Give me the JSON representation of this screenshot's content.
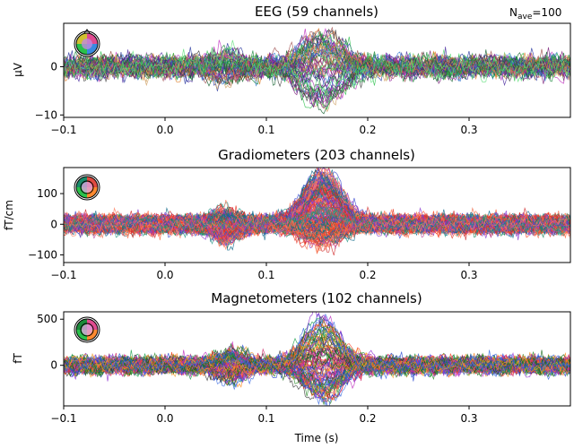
{
  "figure": {
    "nave_label": "N",
    "nave_sub": "ave",
    "nave_value": "=100"
  },
  "chart_data": [
    {
      "type": "line",
      "title": "EEG (59 channels)",
      "ylabel": "µV",
      "xlabel": "",
      "xlim": [
        -0.1,
        0.4
      ],
      "ylim": [
        -10.5,
        9.0
      ],
      "xticks": [
        -0.1,
        0.0,
        0.1,
        0.2,
        0.3
      ],
      "xtick_labels": [
        "−0.1",
        "0.0",
        "0.1",
        "0.2",
        "0.3"
      ],
      "yticks": [
        -10,
        0
      ],
      "ytick_labels": [
        "−10",
        "0"
      ],
      "n_channels": 59,
      "noise": 1.0,
      "components": [
        {
          "center": 0.155,
          "width": 0.028,
          "amp_min": -8.5,
          "amp_max": 7.5
        },
        {
          "center": 0.06,
          "width": 0.02,
          "amp_min": -3,
          "amp_max": 3
        }
      ],
      "palette": [
        "#1a8a3a",
        "#2fbf4f",
        "#5fe07a",
        "#0f5f2a",
        "#7a1f7a",
        "#9a2aa0",
        "#c030c0",
        "#4a2aa0",
        "#2a3aa0",
        "#3a7ad0",
        "#e08030",
        "#d0a060",
        "#a05050",
        "#404040"
      ]
    },
    {
      "type": "line",
      "title": "Gradiometers (203 channels)",
      "ylabel": "fT/cm",
      "xlabel": "",
      "xlim": [
        -0.1,
        0.4
      ],
      "ylim": [
        -125,
        185
      ],
      "xticks": [
        -0.1,
        0.0,
        0.1,
        0.2,
        0.3
      ],
      "xtick_labels": [
        "−0.1",
        "0.0",
        "0.1",
        "0.2",
        "0.3"
      ],
      "yticks": [
        -100,
        0,
        100
      ],
      "ytick_labels": [
        "−100",
        "0",
        "100"
      ],
      "n_channels": 203,
      "noise": 12,
      "components": [
        {
          "center": 0.155,
          "width": 0.025,
          "amp_min": -70,
          "amp_max": 165
        },
        {
          "center": 0.06,
          "width": 0.015,
          "amp_min": -55,
          "amp_max": 45
        }
      ],
      "palette": [
        "#ff4020",
        "#ff6a40",
        "#e83020",
        "#f07050",
        "#1a8a5a",
        "#0f6a8a",
        "#3a4ad0",
        "#8a3ad0",
        "#c04aa0",
        "#ff8060",
        "#2a9a8a",
        "#d02a2a"
      ]
    },
    {
      "type": "line",
      "title": "Magnetometers (102 channels)",
      "ylabel": "fT",
      "xlabel": "Time (s)",
      "xlim": [
        -0.1,
        0.4
      ],
      "ylim": [
        -440,
        580
      ],
      "xticks": [
        -0.1,
        0.0,
        0.1,
        0.2,
        0.3
      ],
      "xtick_labels": [
        "−0.1",
        "0.0",
        "0.1",
        "0.2",
        "0.3"
      ],
      "yticks": [
        0,
        500
      ],
      "ytick_labels": [
        "0",
        "500"
      ],
      "n_channels": 102,
      "noise": 40,
      "components": [
        {
          "center": 0.155,
          "width": 0.025,
          "amp_min": -380,
          "amp_max": 520
        },
        {
          "center": 0.065,
          "width": 0.018,
          "amp_min": -180,
          "amp_max": 150
        }
      ],
      "palette": [
        "#2a8a2a",
        "#1a6a1a",
        "#ff8a20",
        "#f0a030",
        "#2a4ad0",
        "#3a6ae0",
        "#8a2ad0",
        "#c030c0",
        "#d02a6a",
        "#ff4020",
        "#3a3a3a",
        "#1aa04a"
      ]
    }
  ]
}
